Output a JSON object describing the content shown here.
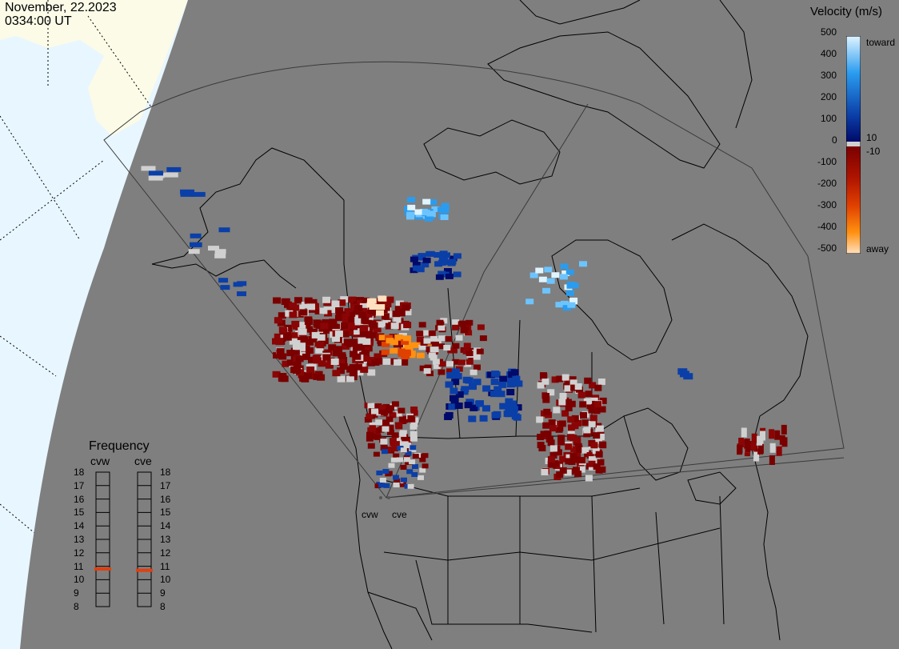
{
  "header": {
    "date": "November, 22.2023",
    "time": "0334:00 UT"
  },
  "colorbar": {
    "title": "Velocity (m/s)",
    "ticks": [
      "500",
      "400",
      "300",
      "200",
      "100",
      "0",
      "-100",
      "-200",
      "-300",
      "-400",
      "-500"
    ],
    "side_labels": {
      "toward": "toward",
      "ten": "10",
      "minus_ten": "-10",
      "away": "away"
    },
    "colors": {
      "toward_light": "#e0f4ff",
      "toward_mid": "#2a9cf0",
      "toward_dark": "#0b3fa8",
      "near_zero_pos": "#000a6a",
      "ground_scatter": "#d0d0d0",
      "near_zero_neg": "#7a0000",
      "away_mid": "#e04000",
      "away_orange": "#ff9010",
      "away_light": "#ffe0c0"
    }
  },
  "frequency": {
    "title": "Frequency",
    "radars": [
      "cvw",
      "cve"
    ],
    "ticks": [
      "18",
      "17",
      "16",
      "15",
      "14",
      "13",
      "12",
      "11",
      "10",
      "9",
      "8"
    ],
    "cvw_value": 10.8,
    "cve_value": 10.7,
    "marker_color": "#e04010"
  },
  "map": {
    "background": "#7f7f7f",
    "ocean_color": "#e8f6ff",
    "land_outside_color": "#fbfbe8",
    "site_labels": [
      "cvw",
      "cve"
    ]
  }
}
